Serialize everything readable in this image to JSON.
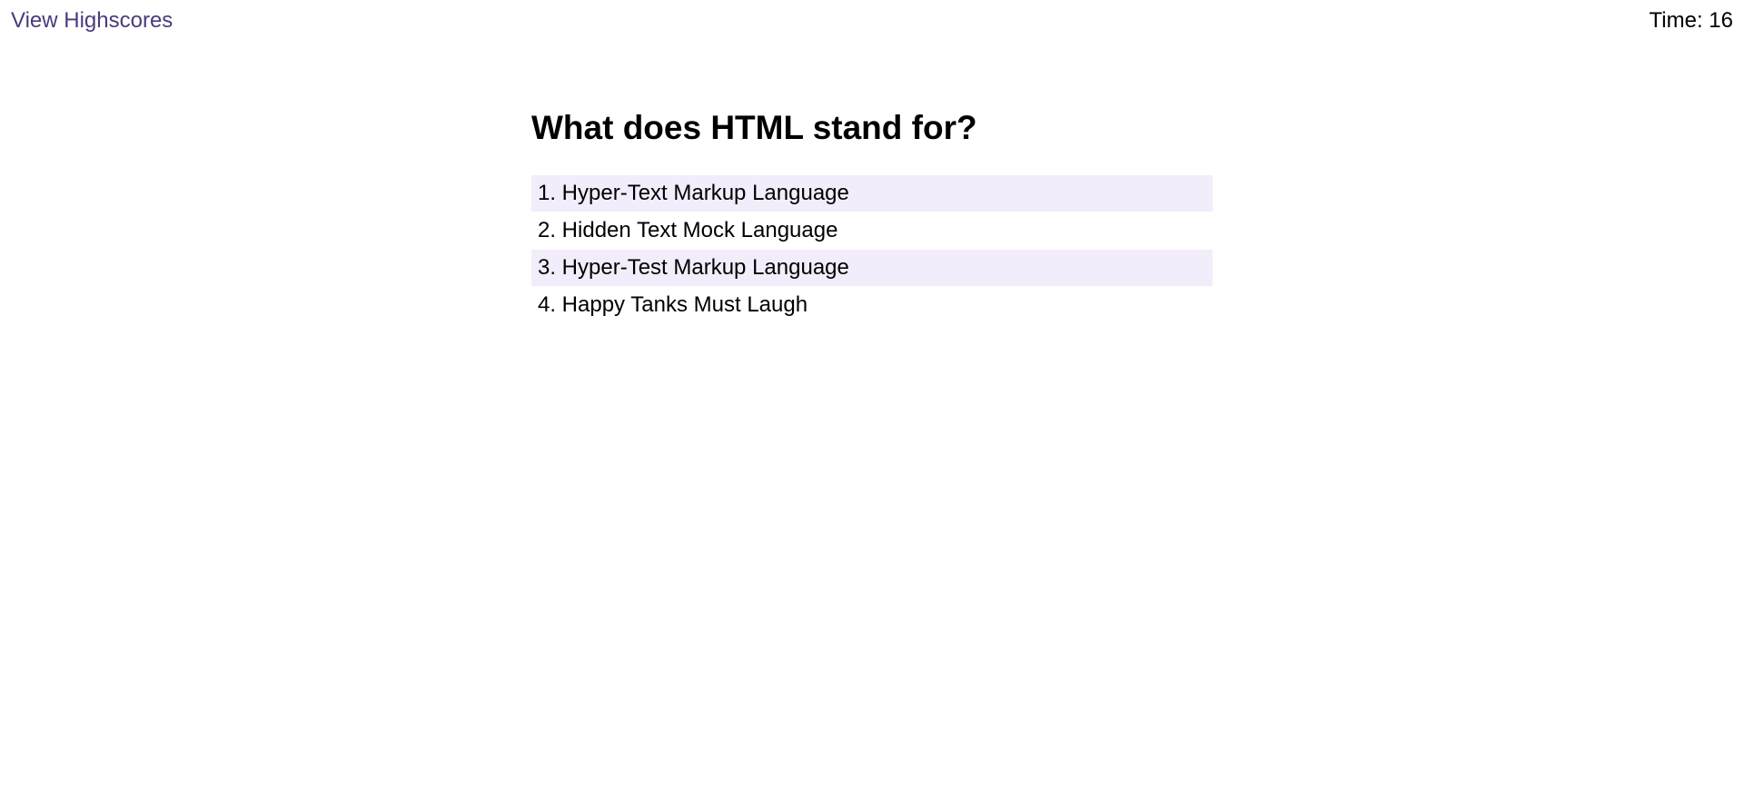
{
  "header": {
    "highscores_label": "View Highscores",
    "timer_text": "Time: 16"
  },
  "quiz": {
    "question": "What does HTML stand for?",
    "choices": [
      {
        "label": "1. Hyper-Text Markup Language"
      },
      {
        "label": "2. Hidden Text Mock Language"
      },
      {
        "label": "3. Hyper-Test Markup Language"
      },
      {
        "label": "4. Happy Tanks Must Laugh"
      }
    ]
  },
  "colors": {
    "link": "#4b3a7d",
    "choice_shade": "#f3edfb"
  }
}
